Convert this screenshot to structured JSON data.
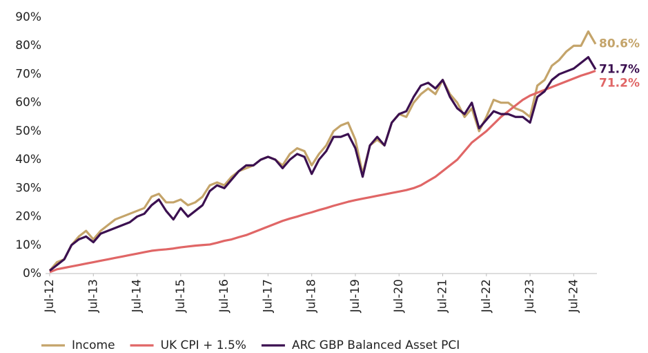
{
  "chart_data": {
    "type": "line",
    "categories": [
      "Jul-12",
      null,
      null,
      null,
      null,
      null,
      "Jul-13",
      null,
      null,
      null,
      null,
      null,
      "Jul-14",
      null,
      null,
      null,
      null,
      null,
      "Jul-15",
      null,
      null,
      null,
      null,
      null,
      "Jul-16",
      null,
      null,
      null,
      null,
      null,
      "Jul-17",
      null,
      null,
      null,
      null,
      null,
      "Jul-18",
      null,
      null,
      null,
      null,
      null,
      "Jul-19",
      null,
      null,
      null,
      null,
      null,
      "Jul-20",
      null,
      null,
      null,
      null,
      null,
      "Jul-21",
      null,
      null,
      null,
      null,
      null,
      "Jul-22",
      null,
      null,
      null,
      null,
      null,
      "Jul-23",
      null,
      null,
      null,
      null,
      null,
      "Jul-24",
      null,
      null,
      null
    ],
    "series": [
      {
        "name": "Income",
        "color": "#c4a46a",
        "values": [
          1,
          4,
          5,
          10,
          13,
          15,
          12,
          15,
          17,
          19,
          20,
          21,
          22,
          23,
          27,
          28,
          25,
          25,
          26,
          24,
          25,
          27,
          31,
          32,
          31,
          34,
          36,
          37,
          38,
          40,
          41,
          40,
          38,
          42,
          44,
          43,
          38,
          42,
          45,
          50,
          52,
          53,
          47,
          35,
          45,
          47,
          45,
          53,
          56,
          55,
          60,
          63,
          65,
          63,
          68,
          63,
          60,
          55,
          58,
          50,
          55,
          61,
          60,
          60,
          58,
          57,
          55,
          66,
          68,
          73,
          75,
          78,
          80,
          80,
          85,
          80.6
        ],
        "value_labels": [
          null,
          null,
          null,
          null,
          null,
          null,
          null,
          null,
          null,
          null,
          null,
          null,
          null,
          null,
          null,
          null,
          null,
          null,
          null,
          null,
          null,
          null,
          null,
          null,
          null,
          null,
          null,
          null,
          null,
          null,
          null,
          null,
          null,
          null,
          null,
          null,
          null,
          null,
          null,
          null,
          null,
          null,
          null,
          null,
          null,
          null,
          null,
          null,
          null,
          null,
          null,
          null,
          null,
          null,
          null,
          null,
          null,
          null,
          null,
          null,
          null,
          null,
          null,
          null,
          null,
          null,
          null,
          null,
          null,
          null,
          null,
          null,
          null,
          null,
          null,
          "80.6%"
        ]
      },
      {
        "name": "UK CPI + 1.5%",
        "color": "#e06666",
        "values": [
          0.5,
          1.5,
          2,
          2.5,
          3,
          3.5,
          4,
          4.5,
          5,
          5.5,
          6,
          6.5,
          7,
          7.5,
          8,
          8.3,
          8.5,
          8.8,
          9.2,
          9.5,
          9.8,
          10,
          10.2,
          10.8,
          11.5,
          12,
          12.8,
          13.5,
          14.5,
          15.5,
          16.5,
          17.5,
          18.5,
          19.3,
          20,
          20.8,
          21.5,
          22.3,
          23,
          23.8,
          24.5,
          25.2,
          25.8,
          26.3,
          26.8,
          27.3,
          27.8,
          28.3,
          28.8,
          29.3,
          30,
          31,
          32.5,
          34,
          36,
          38,
          40,
          43,
          46,
          48,
          50,
          52.5,
          55,
          57,
          59,
          61,
          62.5,
          63.5,
          64.5,
          65.5,
          66.5,
          67.5,
          68.5,
          69.5,
          70.3,
          71.2
        ],
        "value_labels": [
          null,
          null,
          null,
          null,
          null,
          null,
          null,
          null,
          null,
          null,
          null,
          null,
          null,
          null,
          null,
          null,
          null,
          null,
          null,
          null,
          null,
          null,
          null,
          null,
          null,
          null,
          null,
          null,
          null,
          null,
          null,
          null,
          null,
          null,
          null,
          null,
          null,
          null,
          null,
          null,
          null,
          null,
          null,
          null,
          null,
          null,
          null,
          null,
          null,
          null,
          null,
          null,
          null,
          null,
          null,
          null,
          null,
          null,
          null,
          null,
          null,
          null,
          null,
          null,
          null,
          null,
          null,
          null,
          null,
          null,
          null,
          null,
          null,
          null,
          null,
          "71.2%"
        ]
      },
      {
        "name": "ARC GBP Balanced Asset PCI",
        "color": "#3b1050",
        "values": [
          1,
          3,
          5,
          10,
          12,
          13,
          11,
          14,
          15,
          16,
          17,
          18,
          20,
          21,
          24,
          26,
          22,
          19,
          23,
          20,
          22,
          24,
          29,
          31,
          30,
          33,
          36,
          38,
          38,
          40,
          41,
          40,
          37,
          40,
          42,
          41,
          35,
          40,
          43,
          48,
          48,
          49,
          44,
          34,
          45,
          48,
          45,
          53,
          56,
          57,
          62,
          66,
          67,
          65,
          68,
          62,
          58,
          56,
          60,
          51,
          54,
          57,
          56,
          56,
          55,
          55,
          53,
          62,
          64,
          68,
          70,
          71,
          72,
          74,
          76,
          71.7
        ],
        "value_labels": [
          null,
          null,
          null,
          null,
          null,
          null,
          null,
          null,
          null,
          null,
          null,
          null,
          null,
          null,
          null,
          null,
          null,
          null,
          null,
          null,
          null,
          null,
          null,
          null,
          null,
          null,
          null,
          null,
          null,
          null,
          null,
          null,
          null,
          null,
          null,
          null,
          null,
          null,
          null,
          null,
          null,
          null,
          null,
          null,
          null,
          null,
          null,
          null,
          null,
          null,
          null,
          null,
          null,
          null,
          null,
          null,
          null,
          null,
          null,
          null,
          null,
          null,
          null,
          null,
          null,
          null,
          null,
          null,
          null,
          null,
          null,
          null,
          null,
          null,
          null,
          "71.7%"
        ]
      }
    ],
    "ylim": [
      0,
      90
    ],
    "yticks": [
      {
        "value": 0,
        "label": "0%"
      },
      {
        "value": 10,
        "label": "10%"
      },
      {
        "value": 20,
        "label": "20%"
      },
      {
        "value": 30,
        "label": "30%"
      },
      {
        "value": 40,
        "label": "40%"
      },
      {
        "value": 50,
        "label": "50%"
      },
      {
        "value": 60,
        "label": "60%"
      },
      {
        "value": 70,
        "label": "70%"
      },
      {
        "value": 80,
        "label": "80%"
      },
      {
        "value": 90,
        "label": "90%"
      }
    ],
    "grid": false,
    "legend": "bottom"
  }
}
